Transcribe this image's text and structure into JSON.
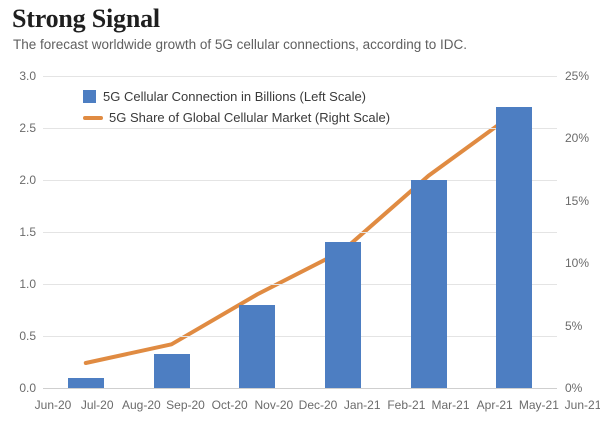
{
  "header": {
    "title": "Strong Signal",
    "subtitle": "The forecast worldwide growth of 5G cellular connections, according to IDC."
  },
  "legend": {
    "items": [
      {
        "label": "5G Cellular Connection in Billions (Left Scale)",
        "swatch": "square",
        "icon": "bar-series-swatch"
      },
      {
        "label": "5G Share of Global Cellular Market (Right Scale)",
        "swatch": "line",
        "icon": "line-series-swatch"
      }
    ]
  },
  "colors": {
    "bar": "#4d7ec2",
    "line": "#e08b42",
    "gridline": "#e4e4e4",
    "baseline": "#cfcfcf",
    "axis_text": "#6b6b6b"
  },
  "chart_data": {
    "type": "bar",
    "subtype": "combo-bar-line-dual-axis",
    "title": "Strong Signal",
    "subtitle": "The forecast worldwide growth of 5G cellular connections, according to IDC.",
    "x_tick_labels": [
      "Jun-20",
      "Jul-20",
      "Aug-20",
      "Sep-20",
      "Oct-20",
      "Nov-20",
      "Dec-20",
      "Jan-21",
      "Feb-21",
      "Mar-21",
      "Apr-21",
      "May-21",
      "Jun-21"
    ],
    "categories": [
      "Jul-20",
      "Sep-20",
      "Nov-20",
      "Jan-21",
      "Mar-21",
      "May-21"
    ],
    "category_month_index": [
      1,
      3,
      5,
      7,
      9,
      11
    ],
    "series": [
      {
        "name": "5G Cellular Connection in Billions (Left Scale)",
        "type": "bar",
        "axis": "left",
        "values": [
          0.1,
          0.33,
          0.8,
          1.4,
          2.0,
          2.7
        ]
      },
      {
        "name": "5G Share of Global Cellular Market (Right Scale)",
        "type": "line",
        "axis": "right",
        "values": [
          2,
          3.5,
          7.5,
          11,
          17,
          22
        ]
      }
    ],
    "left_axis": {
      "min": 0,
      "max": 3,
      "tick_labels_top_to_bottom": [
        "3.0",
        "2.5",
        "2.0",
        "1.5",
        "1.0",
        "0.5",
        "0.0"
      ]
    },
    "right_axis": {
      "min": 0,
      "max": 25,
      "tick_labels_top_to_bottom": [
        "25%",
        "20%",
        "15%",
        "10%",
        "5%",
        "0%"
      ]
    },
    "grid": "horizontal-only",
    "legend_position": "top-left-inside-plot"
  }
}
